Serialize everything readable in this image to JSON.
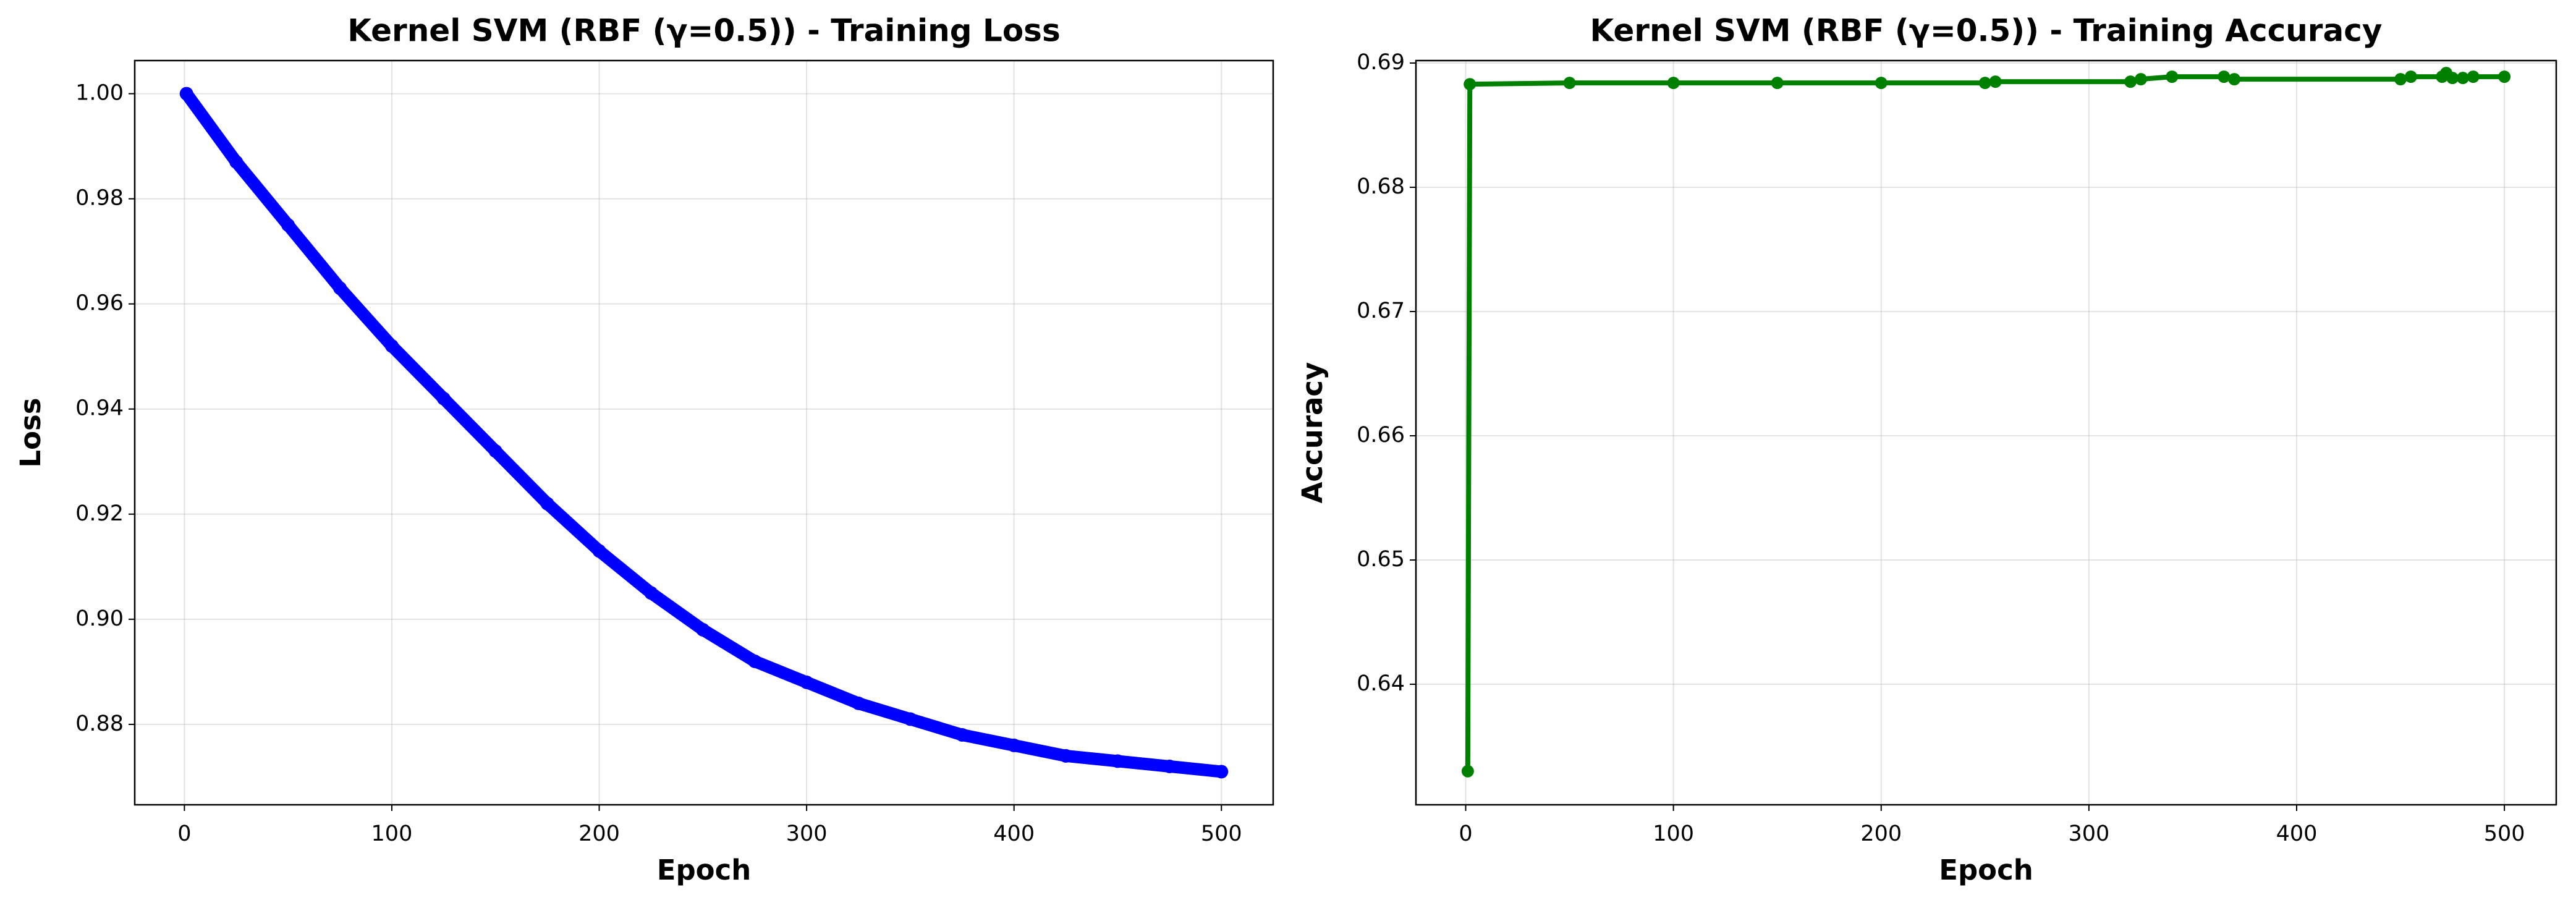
{
  "chart_data": [
    {
      "type": "line",
      "title": "Kernel SVM (RBF (γ=0.5)) - Training Loss",
      "x_label": "Epoch",
      "y_label": "Loss",
      "color": "#0000ff",
      "grid": true,
      "x": [
        1,
        25,
        50,
        75,
        100,
        125,
        150,
        175,
        200,
        225,
        250,
        275,
        300,
        325,
        350,
        375,
        400,
        425,
        450,
        475,
        500
      ],
      "values": [
        1.0,
        0.987,
        0.975,
        0.963,
        0.952,
        0.942,
        0.932,
        0.922,
        0.913,
        0.905,
        0.898,
        0.892,
        0.888,
        0.884,
        0.881,
        0.878,
        0.876,
        0.874,
        0.873,
        0.872,
        0.871
      ],
      "xlim": [
        -23.95,
        524.95
      ],
      "xticks": [
        0,
        100,
        200,
        300,
        400,
        500
      ],
      "ylim": [
        0.8647,
        1.0063
      ],
      "yticks": [
        0.88,
        {
          "value": 0.9,
          "label": "0.90"
        },
        0.92,
        0.94,
        0.96,
        0.98,
        {
          "value": 1.0,
          "label": "1.00"
        }
      ]
    },
    {
      "type": "line",
      "title": "Kernel SVM (RBF (γ=0.5)) - Training Accuracy",
      "x_label": "Epoch",
      "y_label": "Accuracy",
      "color": "#008000",
      "grid": true,
      "x": [
        1,
        2,
        50,
        100,
        150,
        200,
        250,
        255,
        320,
        325,
        340,
        365,
        370,
        450,
        455,
        470,
        472,
        475,
        480,
        485,
        500
      ],
      "values": [
        0.633,
        0.6883,
        0.6884,
        0.6884,
        0.6884,
        0.6884,
        0.6884,
        0.6885,
        0.6885,
        0.6887,
        0.6889,
        0.6889,
        0.6887,
        0.6887,
        0.6889,
        0.6889,
        0.6892,
        0.6888,
        0.6888,
        0.6889,
        0.6889
      ],
      "xlim": [
        -23.95,
        524.95
      ],
      "xticks": [
        0,
        100,
        200,
        300,
        400,
        500
      ],
      "ylim": [
        0.6303,
        0.6902
      ],
      "yticks": [
        0.64,
        0.65,
        0.66,
        0.67,
        0.68,
        0.69
      ]
    }
  ]
}
